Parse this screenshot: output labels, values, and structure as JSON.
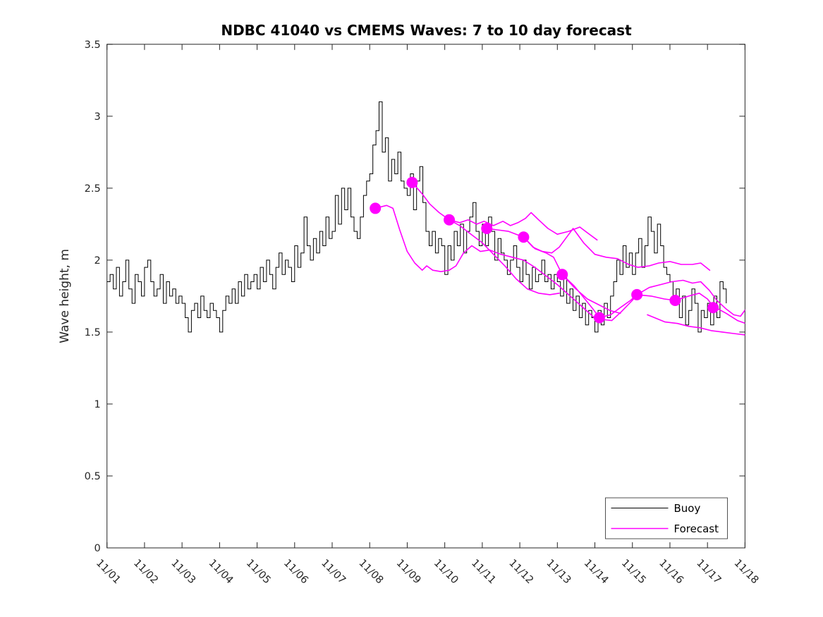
{
  "figure": {
    "background": "#ffffff",
    "axis_color": "#262626",
    "text_color": "#262626"
  },
  "chart_data": {
    "type": "line",
    "title": "NDBC 41040 vs CMEMS Waves: 7 to 10 day forecast",
    "xlabel": "",
    "ylabel": "Wave height, m",
    "ylim": [
      0,
      3.5
    ],
    "y_ticks": [
      0,
      0.5,
      1,
      1.5,
      2,
      2.5,
      3,
      3.5
    ],
    "y_tick_labels": [
      "0",
      "0.5",
      "1",
      "1.5",
      "2",
      "2.5",
      "3",
      "3.5"
    ],
    "x_range_days": [
      1,
      18
    ],
    "x_tick_labels": [
      "11/01",
      "11/02",
      "11/03",
      "11/04",
      "11/05",
      "11/06",
      "11/07",
      "11/08",
      "11/09",
      "11/10",
      "11/11",
      "11/12",
      "11/13",
      "11/14",
      "11/15",
      "11/16",
      "11/17",
      "11/18"
    ],
    "grid": false,
    "legend": {
      "position": "lower-right",
      "entries": [
        {
          "label": "Buoy",
          "color": "#000000"
        },
        {
          "label": "Forecast",
          "color": "#ff00ff"
        }
      ]
    },
    "series": [
      {
        "name": "Buoy",
        "color": "#000000",
        "style": "steps",
        "x_start_day": 1.0,
        "x_step_days": 0.0833333,
        "values": [
          1.85,
          1.9,
          1.8,
          1.95,
          1.75,
          1.85,
          2.0,
          1.8,
          1.7,
          1.9,
          1.85,
          1.75,
          1.95,
          2.0,
          1.85,
          1.75,
          1.8,
          1.9,
          1.7,
          1.85,
          1.75,
          1.8,
          1.7,
          1.75,
          1.7,
          1.6,
          1.5,
          1.65,
          1.7,
          1.6,
          1.75,
          1.65,
          1.6,
          1.7,
          1.65,
          1.6,
          1.5,
          1.65,
          1.75,
          1.7,
          1.8,
          1.7,
          1.85,
          1.75,
          1.9,
          1.8,
          1.85,
          1.9,
          1.8,
          1.95,
          1.85,
          2.0,
          1.9,
          1.8,
          1.95,
          2.05,
          1.9,
          2.0,
          1.95,
          1.85,
          2.1,
          1.95,
          2.05,
          2.3,
          2.1,
          2.0,
          2.15,
          2.05,
          2.2,
          2.1,
          2.3,
          2.15,
          2.2,
          2.45,
          2.25,
          2.5,
          2.35,
          2.5,
          2.3,
          2.2,
          2.15,
          2.3,
          2.45,
          2.55,
          2.6,
          2.8,
          2.9,
          3.1,
          2.75,
          2.85,
          2.55,
          2.7,
          2.6,
          2.75,
          2.55,
          2.5,
          2.45,
          2.6,
          2.35,
          2.55,
          2.65,
          2.4,
          2.2,
          2.1,
          2.2,
          2.05,
          2.15,
          2.1,
          1.9,
          2.1,
          2.0,
          2.2,
          2.1,
          2.25,
          2.05,
          2.2,
          2.3,
          2.4,
          2.2,
          2.1,
          2.25,
          2.1,
          2.3,
          2.2,
          2.0,
          2.15,
          2.05,
          2.0,
          1.9,
          2.0,
          2.1,
          1.95,
          1.85,
          2.0,
          1.9,
          1.8,
          1.95,
          1.85,
          1.9,
          2.0,
          1.85,
          1.9,
          1.8,
          1.9,
          1.85,
          1.75,
          1.9,
          1.7,
          1.8,
          1.65,
          1.75,
          1.6,
          1.7,
          1.55,
          1.65,
          1.6,
          1.5,
          1.65,
          1.55,
          1.7,
          1.6,
          1.75,
          1.85,
          2.0,
          1.9,
          2.1,
          1.95,
          2.05,
          1.9,
          2.05,
          2.15,
          1.95,
          2.1,
          2.3,
          2.2,
          2.05,
          2.25,
          2.1,
          1.95,
          1.9,
          1.85,
          1.7,
          1.8,
          1.6,
          1.75,
          1.55,
          1.65,
          1.8,
          1.7,
          1.5,
          1.65,
          1.6,
          1.7,
          1.55,
          1.75,
          1.6,
          1.85,
          1.8,
          1.7
        ]
      },
      {
        "name": "Forecast",
        "color": "#ff00ff",
        "style": "line",
        "segments": [
          [
            [
              8.15,
              2.36
            ],
            [
              8.45,
              2.38
            ],
            [
              8.62,
              2.36
            ],
            [
              8.8,
              2.21
            ],
            [
              9.0,
              2.06
            ],
            [
              9.2,
              1.98
            ],
            [
              9.4,
              1.93
            ],
            [
              9.52,
              1.96
            ],
            [
              9.68,
              1.93
            ],
            [
              9.9,
              1.92
            ],
            [
              10.12,
              1.93
            ],
            [
              10.3,
              1.96
            ],
            [
              10.5,
              2.05
            ],
            [
              10.72,
              2.1
            ],
            [
              10.95,
              2.06
            ],
            [
              11.2,
              2.07
            ],
            [
              11.5,
              2.04
            ],
            [
              11.8,
              2.02
            ],
            [
              12.1,
              2.0
            ],
            [
              12.4,
              1.95
            ],
            [
              12.7,
              1.89
            ],
            [
              13.0,
              1.83
            ],
            [
              13.3,
              1.76
            ],
            [
              13.6,
              1.69
            ],
            [
              13.9,
              1.62
            ],
            [
              14.1,
              1.57
            ]
          ],
          [
            [
              9.13,
              2.54
            ],
            [
              9.4,
              2.46
            ],
            [
              9.6,
              2.39
            ],
            [
              9.85,
              2.33
            ],
            [
              10.12,
              2.28
            ],
            [
              10.4,
              2.24
            ],
            [
              10.7,
              2.18
            ],
            [
              11.0,
              2.12
            ],
            [
              11.3,
              2.04
            ],
            [
              11.6,
              1.96
            ],
            [
              11.9,
              1.87
            ],
            [
              12.2,
              1.8
            ],
            [
              12.5,
              1.77
            ],
            [
              12.8,
              1.76
            ],
            [
              13.05,
              1.77
            ]
          ],
          [
            [
              10.12,
              2.28
            ],
            [
              10.4,
              2.26
            ],
            [
              10.62,
              2.28
            ],
            [
              10.85,
              2.25
            ],
            [
              11.05,
              2.27
            ],
            [
              11.3,
              2.24
            ],
            [
              11.55,
              2.27
            ],
            [
              11.75,
              2.24
            ],
            [
              11.95,
              2.26
            ],
            [
              12.15,
              2.29
            ],
            [
              12.3,
              2.33
            ],
            [
              12.5,
              2.28
            ],
            [
              12.75,
              2.22
            ],
            [
              13.0,
              2.18
            ],
            [
              13.3,
              2.2
            ],
            [
              13.6,
              2.23
            ],
            [
              13.8,
              2.19
            ],
            [
              14.06,
              2.14
            ]
          ],
          [
            [
              11.12,
              2.22
            ],
            [
              11.4,
              2.21
            ],
            [
              11.7,
              2.2
            ],
            [
              12.0,
              2.17
            ],
            [
              12.1,
              2.16
            ],
            [
              12.35,
              2.09
            ],
            [
              12.6,
              2.06
            ],
            [
              12.85,
              2.05
            ],
            [
              13.05,
              2.09
            ],
            [
              13.25,
              2.16
            ],
            [
              13.42,
              2.22
            ],
            [
              13.7,
              2.12
            ],
            [
              14.0,
              2.04
            ],
            [
              14.3,
              2.02
            ],
            [
              14.6,
              2.01
            ],
            [
              14.9,
              1.97
            ],
            [
              15.15,
              1.95
            ],
            [
              15.45,
              1.96
            ],
            [
              15.7,
              1.98
            ],
            [
              16.0,
              1.99
            ],
            [
              16.3,
              1.97
            ],
            [
              16.6,
              1.97
            ],
            [
              16.82,
              1.98
            ],
            [
              17.06,
              1.93
            ]
          ],
          [
            [
              12.1,
              2.16
            ],
            [
              12.4,
              2.08
            ],
            [
              12.7,
              2.05
            ],
            [
              12.9,
              2.02
            ],
            [
              13.13,
              1.9
            ],
            [
              13.45,
              1.81
            ],
            [
              13.8,
              1.73
            ],
            [
              14.1,
              1.69
            ],
            [
              14.4,
              1.65
            ],
            [
              14.68,
              1.63
            ]
          ],
          [
            [
              13.13,
              1.9
            ],
            [
              13.45,
              1.82
            ],
            [
              13.7,
              1.74
            ],
            [
              13.95,
              1.66
            ],
            [
              14.12,
              1.6
            ],
            [
              14.42,
              1.62
            ],
            [
              14.68,
              1.67
            ],
            [
              14.95,
              1.72
            ],
            [
              15.12,
              1.76
            ],
            [
              15.5,
              1.75
            ],
            [
              15.85,
              1.73
            ],
            [
              16.14,
              1.72
            ],
            [
              16.5,
              1.75
            ],
            [
              16.78,
              1.77
            ],
            [
              17.0,
              1.73
            ],
            [
              17.15,
              1.68
            ],
            [
              17.5,
              1.63
            ],
            [
              17.8,
              1.58
            ],
            [
              18.02,
              1.56
            ]
          ],
          [
            [
              14.12,
              1.59
            ],
            [
              14.45,
              1.58
            ],
            [
              14.7,
              1.64
            ],
            [
              15.0,
              1.72
            ],
            [
              15.12,
              1.76
            ],
            [
              15.45,
              1.81
            ],
            [
              15.75,
              1.83
            ],
            [
              16.05,
              1.85
            ],
            [
              16.35,
              1.86
            ],
            [
              16.6,
              1.84
            ],
            [
              16.82,
              1.85
            ],
            [
              17.05,
              1.79
            ],
            [
              17.25,
              1.72
            ],
            [
              17.5,
              1.66
            ],
            [
              17.7,
              1.62
            ],
            [
              17.88,
              1.61
            ],
            [
              18.02,
              1.66
            ]
          ],
          [
            [
              15.4,
              1.62
            ],
            [
              15.87,
              1.57
            ],
            [
              16.2,
              1.56
            ],
            [
              16.5,
              1.54
            ],
            [
              16.8,
              1.53
            ],
            [
              17.1,
              1.51
            ],
            [
              17.4,
              1.5
            ],
            [
              17.7,
              1.49
            ],
            [
              18.02,
              1.48
            ]
          ]
        ]
      },
      {
        "name": "Forecast points",
        "color": "#ff00ff",
        "style": "scatter",
        "points": [
          [
            8.15,
            2.36
          ],
          [
            9.13,
            2.54
          ],
          [
            10.12,
            2.28
          ],
          [
            11.12,
            2.22
          ],
          [
            12.1,
            2.16
          ],
          [
            13.13,
            1.9
          ],
          [
            14.12,
            1.6
          ],
          [
            15.12,
            1.76
          ],
          [
            16.14,
            1.72
          ],
          [
            17.15,
            1.67
          ]
        ]
      }
    ]
  }
}
